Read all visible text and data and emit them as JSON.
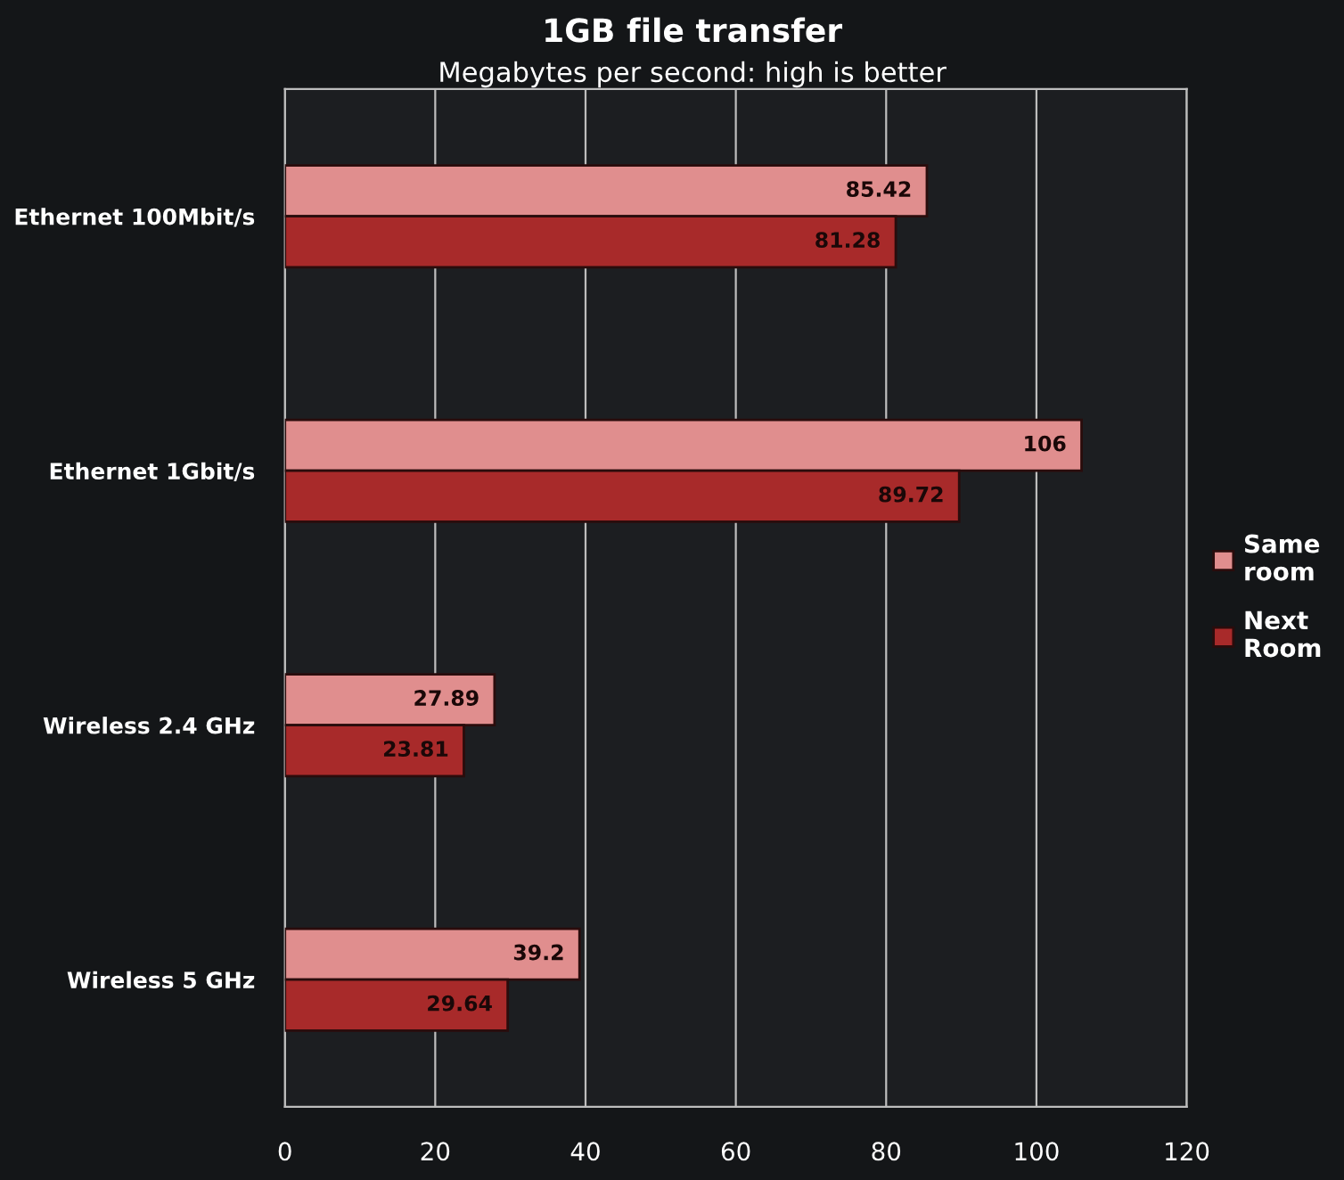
{
  "chart_data": {
    "type": "bar",
    "orientation": "horizontal",
    "title": "1GB file transfer",
    "subtitle": "Megabytes per second: high is better",
    "categories": [
      "Ethernet 100Mbit/s",
      "Ethernet 1Gbit/s",
      "Wireless 2.4 GHz",
      "Wireless 5 GHz"
    ],
    "series": [
      {
        "name": "Same room",
        "color": "#e08e8e",
        "values": [
          85.42,
          106,
          27.89,
          39.2
        ]
      },
      {
        "name": "Next Room",
        "color": "#a82a2a",
        "values": [
          81.28,
          89.72,
          23.81,
          29.64
        ]
      }
    ],
    "xlim": [
      0,
      120
    ],
    "xticks": [
      0,
      20,
      40,
      60,
      80,
      100,
      120
    ],
    "grid": "x",
    "legend": "right",
    "data_labels": true
  }
}
